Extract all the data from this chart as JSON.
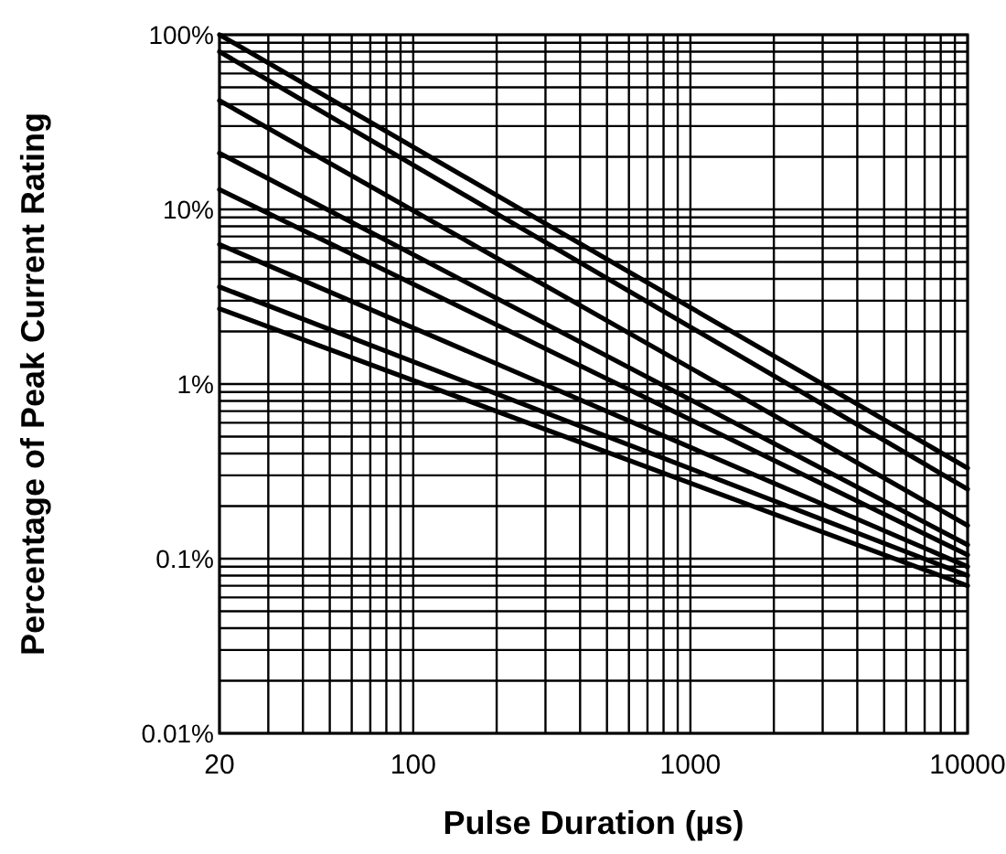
{
  "chart_data": {
    "type": "line",
    "xlabel": "Pulse Duration (µs)",
    "ylabel": "Percentage of Peak Current Rating",
    "log": "xy",
    "grid": true,
    "marker": "none",
    "line_style": "solid",
    "xlim": [
      20,
      10000
    ],
    "xticks": [
      20,
      100,
      1000,
      10000
    ],
    "ylim": [
      0.01,
      100
    ],
    "yticks": [
      {
        "value": 0.01,
        "label": "0.01%"
      },
      {
        "value": 0.1,
        "label": "0.1%"
      },
      {
        "value": 1,
        "label": "1%"
      },
      {
        "value": 10,
        "label": "10%"
      },
      {
        "value": 100,
        "label": "100%"
      }
    ],
    "x": [
      20,
      10000
    ],
    "series": [
      {
        "color": "#000000",
        "values": [
          100,
          0.33
        ]
      },
      {
        "color": "#000000",
        "values": [
          80,
          0.25
        ]
      },
      {
        "color": "#000000",
        "values": [
          42,
          0.155
        ]
      },
      {
        "color": "#000000",
        "values": [
          21,
          0.12
        ]
      },
      {
        "color": "#000000",
        "values": [
          13,
          0.105
        ]
      },
      {
        "color": "#000000",
        "values": [
          6.3,
          0.09
        ]
      },
      {
        "color": "#000000",
        "values": [
          3.6,
          0.08
        ]
      },
      {
        "color": "#000000",
        "values": [
          2.7,
          0.07
        ]
      }
    ]
  }
}
